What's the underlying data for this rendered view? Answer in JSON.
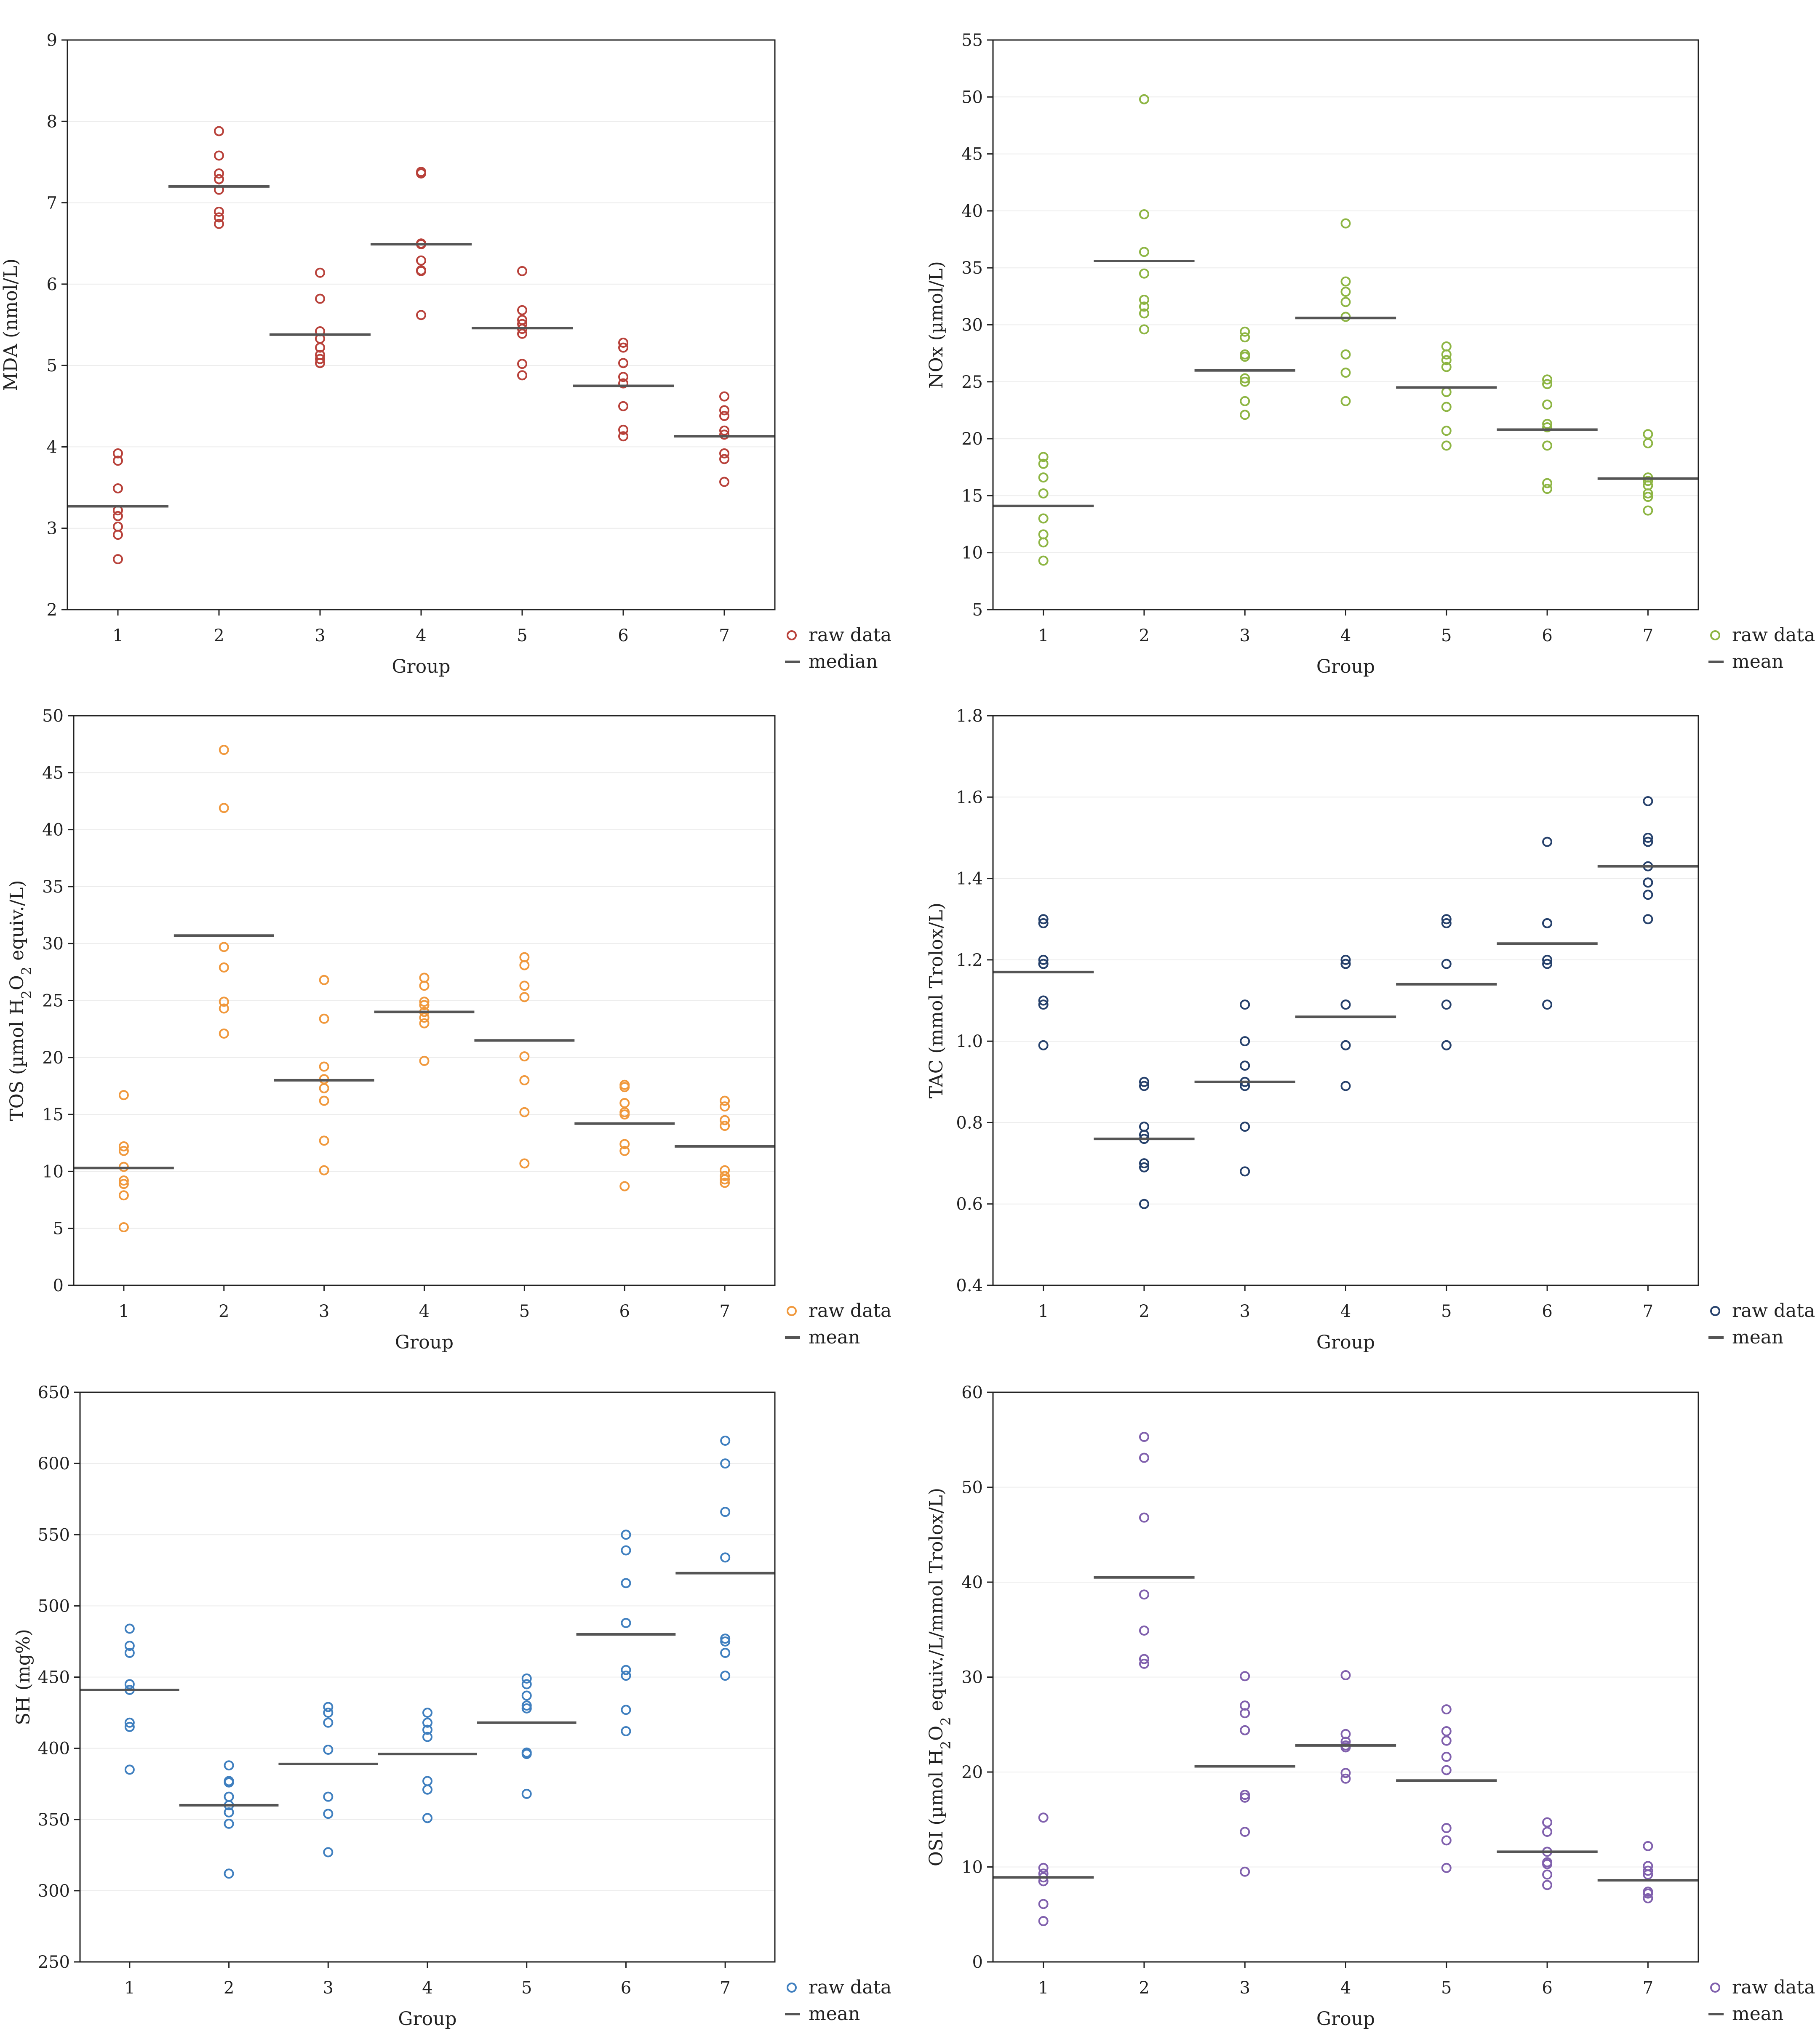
{
  "chart_data": [
    {
      "type": "scatter",
      "xlabel": "Group",
      "ylabel": "MDA (nmol/L)",
      "ylim": [
        2,
        9
      ],
      "yticks": [
        2,
        3,
        4,
        5,
        6,
        7,
        8,
        9
      ],
      "categories": [
        "1",
        "2",
        "3",
        "4",
        "5",
        "6",
        "7"
      ],
      "color": "#b8413a",
      "legend": [
        "raw data",
        "median"
      ],
      "summary_stat": "median",
      "grid": true,
      "legend_position": "bottom-right",
      "series": [
        {
          "name": "raw data",
          "values": [
            [
              2.62,
              2.92,
              3.02,
              3.15,
              3.22,
              3.49,
              3.83,
              3.92
            ],
            [
              6.74,
              6.82,
              6.89,
              7.16,
              7.29,
              7.36,
              7.58,
              7.88
            ],
            [
              5.03,
              5.08,
              5.13,
              5.22,
              5.33,
              5.42,
              5.82,
              6.14
            ],
            [
              5.62,
              6.16,
              6.17,
              6.29,
              6.49,
              6.5,
              7.36,
              7.38
            ],
            [
              4.88,
              5.02,
              5.39,
              5.45,
              5.51,
              5.56,
              5.68,
              6.16
            ],
            [
              4.13,
              4.21,
              4.5,
              4.78,
              4.86,
              5.03,
              5.22,
              5.28
            ],
            [
              3.57,
              3.85,
              3.92,
              4.15,
              4.2,
              4.38,
              4.45,
              4.62
            ]
          ]
        },
        {
          "name": "median",
          "values": [
            3.27,
            7.2,
            5.38,
            6.49,
            5.46,
            4.75,
            4.13
          ]
        }
      ]
    },
    {
      "type": "scatter",
      "xlabel": "Group",
      "ylabel": "NOx (µmol/L)",
      "ylim": [
        5,
        55
      ],
      "yticks": [
        5,
        10,
        15,
        20,
        25,
        30,
        35,
        40,
        45,
        50,
        55
      ],
      "categories": [
        "1",
        "2",
        "3",
        "4",
        "5",
        "6",
        "7"
      ],
      "color": "#8db543",
      "legend": [
        "raw data",
        "mean"
      ],
      "summary_stat": "mean",
      "grid": true,
      "legend_position": "bottom-right",
      "series": [
        {
          "name": "raw data",
          "values": [
            [
              9.3,
              10.9,
              11.6,
              13.0,
              15.2,
              16.6,
              17.8,
              18.4
            ],
            [
              29.6,
              31.0,
              31.6,
              32.2,
              34.5,
              36.4,
              39.7,
              49.8
            ],
            [
              22.1,
              23.3,
              25.0,
              25.3,
              27.2,
              27.4,
              28.9,
              29.4
            ],
            [
              23.3,
              25.8,
              27.4,
              30.7,
              32.0,
              32.9,
              33.8,
              38.9
            ],
            [
              19.4,
              20.7,
              22.8,
              24.1,
              26.3,
              26.9,
              27.4,
              28.1
            ],
            [
              15.6,
              16.1,
              19.4,
              21.0,
              21.3,
              23.0,
              24.8,
              25.2
            ],
            [
              13.7,
              14.9,
              15.2,
              15.9,
              16.3,
              16.6,
              19.6,
              20.4
            ]
          ]
        },
        {
          "name": "mean",
          "values": [
            14.1,
            35.6,
            26.0,
            30.6,
            24.5,
            20.8,
            16.5
          ]
        }
      ]
    },
    {
      "type": "scatter",
      "xlabel": "Group",
      "ylabel_parts": [
        "TOS  (µmol H",
        "2",
        "O",
        "2",
        " equiv./L)"
      ],
      "ylim": [
        0,
        50
      ],
      "yticks": [
        0,
        5,
        10,
        15,
        20,
        25,
        30,
        35,
        40,
        45,
        50
      ],
      "categories": [
        "1",
        "2",
        "3",
        "4",
        "5",
        "6",
        "7"
      ],
      "color": "#f0983c",
      "legend": [
        "raw data",
        "mean"
      ],
      "summary_stat": "mean",
      "grid": true,
      "legend_position": "bottom-right",
      "series": [
        {
          "name": "raw data",
          "values": [
            [
              5.1,
              7.9,
              8.9,
              9.2,
              10.4,
              11.8,
              12.2,
              16.7
            ],
            [
              22.1,
              24.3,
              24.9,
              27.9,
              29.7,
              41.9,
              47.0
            ],
            [
              10.1,
              12.7,
              16.2,
              17.3,
              18.1,
              19.2,
              23.4,
              26.8
            ],
            [
              19.7,
              23.0,
              23.5,
              24.0,
              24.6,
              24.9,
              26.3,
              27.0
            ],
            [
              10.7,
              15.2,
              18.0,
              20.1,
              25.3,
              26.3,
              28.1,
              28.8
            ],
            [
              8.7,
              11.8,
              12.4,
              15.0,
              15.2,
              16.0,
              17.4,
              17.6
            ],
            [
              9.0,
              9.3,
              9.6,
              10.1,
              14.0,
              14.5,
              15.7,
              16.2
            ]
          ]
        },
        {
          "name": "mean",
          "values": [
            10.3,
            30.7,
            18.0,
            24.0,
            21.5,
            14.2,
            12.2
          ]
        }
      ]
    },
    {
      "type": "scatter",
      "xlabel": "Group",
      "ylabel": "TAC  (mmol Trolox/L)",
      "ylim": [
        0.4,
        1.8
      ],
      "yticks": [
        "0.4",
        "0.6",
        "0.8",
        "1.0",
        "1.2",
        "1.4",
        "1.6",
        "1.8"
      ],
      "categories": [
        "1",
        "2",
        "3",
        "4",
        "5",
        "6",
        "7"
      ],
      "color": "#25406b",
      "legend": [
        "raw data",
        "mean"
      ],
      "summary_stat": "mean",
      "grid": true,
      "legend_position": "bottom-right",
      "series": [
        {
          "name": "raw data",
          "values": [
            [
              0.99,
              1.09,
              1.1,
              1.19,
              1.19,
              1.2,
              1.29,
              1.3
            ],
            [
              0.6,
              0.69,
              0.7,
              0.76,
              0.77,
              0.79,
              0.89,
              0.9
            ],
            [
              0.68,
              0.79,
              0.89,
              0.9,
              0.94,
              1.0,
              1.09
            ],
            [
              0.89,
              0.99,
              0.99,
              1.09,
              1.09,
              1.19,
              1.19,
              1.2
            ],
            [
              0.99,
              0.99,
              1.09,
              1.19,
              1.29,
              1.3
            ],
            [
              1.09,
              1.19,
              1.2,
              1.29,
              1.29,
              1.49
            ],
            [
              1.3,
              1.36,
              1.39,
              1.39,
              1.43,
              1.49,
              1.5,
              1.59
            ]
          ]
        },
        {
          "name": "mean",
          "values": [
            1.17,
            0.76,
            0.9,
            1.06,
            1.14,
            1.24,
            1.43
          ]
        }
      ]
    },
    {
      "type": "scatter",
      "xlabel": "Group",
      "ylabel": "SH (mg%)",
      "ylim": [
        250,
        650
      ],
      "yticks": [
        250,
        300,
        350,
        400,
        450,
        500,
        550,
        600,
        650
      ],
      "categories": [
        "1",
        "2",
        "3",
        "4",
        "5",
        "6",
        "7"
      ],
      "color": "#3f7fbf",
      "legend": [
        "raw data",
        "mean"
      ],
      "summary_stat": "mean",
      "grid": true,
      "legend_position": "bottom-right",
      "series": [
        {
          "name": "raw data",
          "values": [
            [
              385,
              415,
              418,
              441,
              445,
              467,
              472,
              484
            ],
            [
              312,
              347,
              355,
              360,
              366,
              376,
              377,
              388
            ],
            [
              327,
              354,
              366,
              399,
              418,
              425,
              429
            ],
            [
              351,
              371,
              377,
              408,
              413,
              418,
              425
            ],
            [
              368,
              396,
              397,
              428,
              430,
              437,
              445,
              449
            ],
            [
              412,
              427,
              451,
              455,
              488,
              516,
              539,
              550
            ],
            [
              451,
              467,
              475,
              477,
              534,
              566,
              600,
              616
            ]
          ]
        },
        {
          "name": "mean",
          "values": [
            441,
            360,
            389,
            396,
            418,
            480,
            523
          ]
        }
      ]
    },
    {
      "type": "scatter",
      "xlabel": "Group",
      "ylabel_parts": [
        "OSI  (µmol H",
        "2",
        "O",
        "2",
        " equiv./L/mmol Trolox/L)"
      ],
      "ylim": [
        0,
        60
      ],
      "yticks": [
        0,
        10,
        20,
        30,
        40,
        50,
        60
      ],
      "categories": [
        "1",
        "2",
        "3",
        "4",
        "5",
        "6",
        "7"
      ],
      "color": "#8060ad",
      "legend": [
        "raw data",
        "mean"
      ],
      "summary_stat": "mean",
      "grid": true,
      "legend_position": "bottom-right",
      "series": [
        {
          "name": "raw data",
          "values": [
            [
              4.3,
              6.1,
              8.5,
              8.9,
              9.3,
              9.9,
              15.2
            ],
            [
              31.4,
              31.9,
              34.9,
              38.7,
              46.8,
              53.1,
              55.3
            ],
            [
              9.5,
              13.7,
              17.3,
              17.6,
              24.4,
              26.2,
              27.0,
              30.1
            ],
            [
              19.3,
              19.9,
              22.6,
              22.8,
              23.2,
              24.0,
              30.2
            ],
            [
              9.9,
              12.8,
              14.1,
              20.2,
              21.6,
              23.3,
              24.3,
              26.6
            ],
            [
              8.1,
              9.2,
              10.3,
              10.5,
              11.6,
              13.7,
              14.7
            ],
            [
              6.7,
              7.2,
              7.4,
              9.2,
              9.6,
              10.1,
              12.2
            ]
          ]
        },
        {
          "name": "mean",
          "values": [
            8.9,
            40.5,
            20.6,
            22.8,
            19.1,
            11.6,
            8.6
          ]
        }
      ]
    }
  ]
}
